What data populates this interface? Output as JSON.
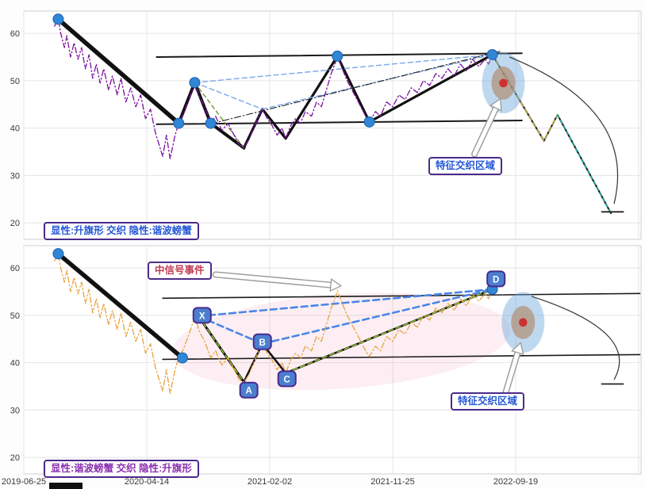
{
  "axes": {
    "x_tick_labels": [
      "2019-06-25",
      "2020-04-14",
      "2021-02-02",
      "2021-11-25",
      "2022-09-19"
    ],
    "y_tick_labels": [
      20,
      30,
      40,
      50,
      60
    ]
  },
  "price_history": {
    "points": [
      [
        0.25,
        61.5
      ],
      [
        0.28,
        63.2
      ],
      [
        0.3,
        60.0
      ],
      [
        0.33,
        57.0
      ],
      [
        0.35,
        59.5
      ],
      [
        0.38,
        55.0
      ],
      [
        0.41,
        58.0
      ],
      [
        0.44,
        54.5
      ],
      [
        0.47,
        57.0
      ],
      [
        0.5,
        52.5
      ],
      [
        0.53,
        55.5
      ],
      [
        0.56,
        50.5
      ],
      [
        0.59,
        53.5
      ],
      [
        0.62,
        49.5
      ],
      [
        0.65,
        52.5
      ],
      [
        0.69,
        48.0
      ],
      [
        0.72,
        51.0
      ],
      [
        0.76,
        47.0
      ],
      [
        0.79,
        50.5
      ],
      [
        0.83,
        45.5
      ],
      [
        0.87,
        48.5
      ],
      [
        0.91,
        44.5
      ],
      [
        0.95,
        47.0
      ],
      [
        0.99,
        42.0
      ],
      [
        1.03,
        44.0
      ],
      [
        1.07,
        39.0
      ],
      [
        1.1,
        36.5
      ],
      [
        1.13,
        34.0
      ],
      [
        1.16,
        38.5
      ],
      [
        1.19,
        33.5
      ],
      [
        1.23,
        38.5
      ],
      [
        1.26,
        41.0
      ],
      [
        1.3,
        43.0
      ],
      [
        1.35,
        46.5
      ],
      [
        1.39,
        49.6
      ],
      [
        1.43,
        46.5
      ],
      [
        1.47,
        44.5
      ],
      [
        1.52,
        41.0
      ],
      [
        1.56,
        42.5
      ],
      [
        1.61,
        39.5
      ],
      [
        1.66,
        41.0
      ],
      [
        1.71,
        38.5
      ],
      [
        1.75,
        36.5
      ],
      [
        1.79,
        35.8
      ],
      [
        1.83,
        37.5
      ],
      [
        1.87,
        40.0
      ],
      [
        1.91,
        42.5
      ],
      [
        1.94,
        44.0
      ],
      [
        1.98,
        42.0
      ],
      [
        2.02,
        40.5
      ],
      [
        2.06,
        38.5
      ],
      [
        2.1,
        40.0
      ],
      [
        2.13,
        37.8
      ],
      [
        2.17,
        40.5
      ],
      [
        2.21,
        42.0
      ],
      [
        2.25,
        41.0
      ],
      [
        2.29,
        43.5
      ],
      [
        2.34,
        42.5
      ],
      [
        2.38,
        45.5
      ],
      [
        2.42,
        44.5
      ],
      [
        2.46,
        48.0
      ],
      [
        2.5,
        51.5
      ],
      [
        2.53,
        53.5
      ],
      [
        2.55,
        55.2
      ],
      [
        2.59,
        52.5
      ],
      [
        2.63,
        50.0
      ],
      [
        2.67,
        48.0
      ],
      [
        2.71,
        46.0
      ],
      [
        2.75,
        44.0
      ],
      [
        2.78,
        42.5
      ],
      [
        2.81,
        41.3
      ],
      [
        2.86,
        43.5
      ],
      [
        2.9,
        42.5
      ],
      [
        2.95,
        45.5
      ],
      [
        3.0,
        44.5
      ],
      [
        3.05,
        47.0
      ],
      [
        3.1,
        46.0
      ],
      [
        3.15,
        48.5
      ],
      [
        3.2,
        47.5
      ],
      [
        3.25,
        50.0
      ],
      [
        3.3,
        49.0
      ],
      [
        3.35,
        51.5
      ],
      [
        3.4,
        50.5
      ],
      [
        3.45,
        52.5
      ],
      [
        3.5,
        51.0
      ],
      [
        3.55,
        53.5
      ],
      [
        3.6,
        52.0
      ],
      [
        3.65,
        54.5
      ],
      [
        3.7,
        53.0
      ],
      [
        3.75,
        54.5
      ],
      [
        3.78,
        53.5
      ],
      [
        3.81,
        55.5
      ]
    ]
  },
  "chart_data": [
    {
      "type": "line",
      "name": "upper-panel-rising-flag",
      "xlim": [
        0,
        5.018
      ],
      "ylim": [
        16.5,
        64.7
      ],
      "grid": true,
      "x_ticks_u": [
        0,
        1,
        2,
        3,
        4,
        5
      ],
      "y_ticks": [
        20,
        30,
        40,
        50,
        60
      ],
      "corner_label": {
        "text": "显性:升旗形 交织 隐性:谐波螃蟹",
        "color": "#2457d6"
      },
      "price": {
        "name": "price-line-purple",
        "color": "#7b0fa0",
        "width": 1.3,
        "dash": "7,3,1.5,3"
      },
      "lines": [
        {
          "name": "channel-upper",
          "color": "#1a1a1a",
          "width": 2,
          "points": [
            [
              1.08,
              55.0
            ],
            [
              4.05,
              55.8
            ]
          ]
        },
        {
          "name": "channel-lower",
          "color": "#1a1a1a",
          "width": 2,
          "points": [
            [
              1.08,
              40.8
            ],
            [
              4.05,
              41.6
            ]
          ]
        },
        {
          "name": "flagpole",
          "color": "#111111",
          "width": 5.5,
          "points": [
            [
              0.28,
              63.0
            ],
            [
              1.26,
              41.0
            ]
          ]
        },
        {
          "name": "flag-zigzag-1",
          "color": "#111111",
          "width": 4,
          "points": [
            [
              1.26,
              41.0
            ],
            [
              1.39,
              49.6
            ],
            [
              1.52,
              41.0
            ],
            [
              1.79,
              35.8
            ]
          ]
        },
        {
          "name": "flag-zigzag-2",
          "color": "#111111",
          "width": 3.2,
          "points": [
            [
              1.79,
              35.8
            ],
            [
              1.94,
              44.0
            ],
            [
              2.13,
              37.8
            ],
            [
              2.55,
              55.2
            ],
            [
              2.81,
              41.3
            ],
            [
              3.81,
              55.5
            ]
          ]
        },
        {
          "name": "hidden-harmonic-xb",
          "color": "#7aa7e8",
          "width": 1.4,
          "dash": "6,4",
          "points": [
            [
              1.39,
              49.6
            ],
            [
              1.94,
              44.0
            ]
          ]
        },
        {
          "name": "hidden-harmonic-bd",
          "color": "#7aa7e8",
          "width": 1.4,
          "dash": "6,4",
          "points": [
            [
              1.94,
              44.0
            ],
            [
              3.81,
              55.5
            ]
          ]
        },
        {
          "name": "hidden-harmonic-xd",
          "color": "#7aa7e8",
          "width": 1.4,
          "dash": "6,4",
          "points": [
            [
              1.39,
              49.6
            ],
            [
              3.81,
              55.5
            ]
          ]
        },
        {
          "name": "hidden-harmonic-xa-green",
          "color": "#6b8e23",
          "width": 1.3,
          "dash": "5,4",
          "points": [
            [
              1.39,
              49.6
            ],
            [
              1.79,
              35.8
            ]
          ]
        },
        {
          "name": "measure-dashdot-ad",
          "color": "#222222",
          "width": 1.1,
          "dash": "8,3,1.5,3",
          "points": [
            [
              1.52,
              40.9
            ],
            [
              3.87,
              56.2
            ]
          ]
        },
        {
          "name": "forecast-path",
          "color": "#111111",
          "width": 2,
          "points": [
            [
              3.81,
              55.5
            ],
            [
              4.23,
              37.3
            ],
            [
              4.34,
              42.8
            ],
            [
              4.775,
              22.0
            ]
          ]
        },
        {
          "name": "forecast-khaki-dash",
          "color": "#b5a642",
          "width": 1.7,
          "dash": "6,4",
          "points": [
            [
              3.81,
              55.5
            ],
            [
              4.23,
              37.3
            ],
            [
              4.34,
              42.8
            ]
          ]
        },
        {
          "name": "forecast-teal-dash",
          "color": "#1fa8a0",
          "width": 1.7,
          "dash": "4,4",
          "points": [
            [
              4.34,
              42.8
            ],
            [
              4.775,
              22.0
            ]
          ]
        },
        {
          "name": "target-end-bar",
          "color": "#222222",
          "width": 1.8,
          "points": [
            [
              4.7,
              22.3
            ],
            [
              4.875,
              22.3
            ]
          ]
        }
      ],
      "markers": {
        "color": "#2f87d5",
        "stroke": "#1f5fa8",
        "r": 6.5,
        "points": [
          [
            0.28,
            63.0
          ],
          [
            1.26,
            41.0
          ],
          [
            1.39,
            49.6
          ],
          [
            1.52,
            41.0
          ],
          [
            2.55,
            55.2
          ],
          [
            2.81,
            41.3
          ],
          [
            3.81,
            55.5
          ]
        ]
      },
      "zone": {
        "x": 3.9,
        "y": 49.5,
        "label": "特征交织区域",
        "rings": [
          {
            "rx": 0.174,
            "ry": 6.4,
            "color": "#6fa8dc",
            "opacity": 0.45
          },
          {
            "rx": 0.097,
            "ry": 3.5,
            "color": "#b08968",
            "opacity": 0.65
          },
          {
            "rx": 0.034,
            "ry": 0.9,
            "color": "#cf2b2b",
            "opacity": 0.95
          }
        ]
      },
      "white_arrows": [
        {
          "from": [
            3.665,
            34.5
          ],
          "to": [
            3.875,
            46.2
          ]
        }
      ],
      "curved_arrow": {
        "p0": [
          3.95,
          55.0
        ],
        "c": [
          4.99,
          44.0
        ],
        "p1": [
          4.8,
          24.0
        ]
      }
    },
    {
      "type": "line",
      "name": "lower-panel-harmonic-crab",
      "xlim": [
        0,
        5.018
      ],
      "ylim": [
        16.5,
        64.7
      ],
      "grid": true,
      "x_ticks_u": [
        0,
        1,
        2,
        3,
        4,
        5
      ],
      "y_ticks": [
        20,
        30,
        40,
        50,
        60
      ],
      "corner_label": {
        "text": "显性:谐波螃蟹 交织 隐性:升旗形",
        "color": "#8b2fb0"
      },
      "signal_label": {
        "text": "中信号事件",
        "color": "#c03a52"
      },
      "price": {
        "name": "price-line-orange",
        "color": "#e8a33d",
        "width": 1.3,
        "dash": "7,3,1.5,3"
      },
      "lines": [
        {
          "name": "channel-upper",
          "color": "#1a1a1a",
          "width": 1.6,
          "points": [
            [
              1.13,
              53.6
            ],
            [
              5.01,
              54.6
            ]
          ]
        },
        {
          "name": "channel-lower",
          "color": "#1a1a1a",
          "width": 1.6,
          "points": [
            [
              1.13,
              40.7
            ],
            [
              5.01,
              41.7
            ]
          ]
        },
        {
          "name": "flagpole",
          "color": "#111111",
          "width": 5.5,
          "points": [
            [
              0.28,
              63.0
            ],
            [
              1.29,
              41.0
            ]
          ]
        },
        {
          "name": "leg-xa-black",
          "color": "#111111",
          "width": 3,
          "points": [
            [
              1.42,
              49.8
            ],
            [
              1.79,
              35.9
            ]
          ]
        },
        {
          "name": "leg-ab-bc-black",
          "color": "#111111",
          "width": 2.5,
          "points": [
            [
              1.79,
              35.9
            ],
            [
              1.94,
              44.0
            ],
            [
              2.13,
              37.8
            ]
          ]
        },
        {
          "name": "leg-cd-black",
          "color": "#111111",
          "width": 2.5,
          "points": [
            [
              2.13,
              37.8
            ],
            [
              3.81,
              55.5
            ]
          ]
        },
        {
          "name": "leg-xa-green-dash",
          "color": "#9acd32",
          "width": 1.4,
          "dash": "6,4",
          "points": [
            [
              1.42,
              49.8
            ],
            [
              1.79,
              35.9
            ]
          ]
        },
        {
          "name": "leg-cd-green-dash",
          "color": "#9acd32",
          "width": 1.4,
          "dash": "6,4",
          "points": [
            [
              2.13,
              37.8
            ],
            [
              3.81,
              55.5
            ]
          ]
        },
        {
          "name": "harmonic-xb-dashed",
          "color": "#4a86e8",
          "width": 2.6,
          "dash": "8,5",
          "points": [
            [
              1.42,
              49.8
            ],
            [
              1.94,
              44.0
            ]
          ]
        },
        {
          "name": "harmonic-bd-dashed",
          "color": "#4a86e8",
          "width": 2.6,
          "dash": "8,5",
          "points": [
            [
              1.94,
              44.0
            ],
            [
              3.81,
              55.5
            ]
          ]
        },
        {
          "name": "harmonic-xd-dashed",
          "color": "#4a86e8",
          "width": 2.6,
          "dash": "8,5",
          "points": [
            [
              1.42,
              49.8
            ],
            [
              3.81,
              55.5
            ]
          ]
        },
        {
          "name": "target-end-bar",
          "color": "#222222",
          "width": 1.8,
          "points": [
            [
              4.7,
              35.5
            ],
            [
              4.875,
              35.5
            ]
          ]
        }
      ],
      "markers": {
        "color": "#2f87d5",
        "stroke": "#1f5fa8",
        "r": 6.5,
        "points": [
          [
            0.28,
            63.0
          ],
          [
            1.29,
            41.0
          ],
          [
            3.81,
            55.5
          ]
        ]
      },
      "badges": [
        {
          "label": "X",
          "x": 1.45,
          "y": 50.0
        },
        {
          "label": "A",
          "x": 1.83,
          "y": 34.2
        },
        {
          "label": "B",
          "x": 1.94,
          "y": 44.4
        },
        {
          "label": "C",
          "x": 2.14,
          "y": 36.6
        },
        {
          "label": "D",
          "x": 3.84,
          "y": 57.7
        }
      ],
      "region_ellipse": {
        "cx": 2.58,
        "cy": 44.5,
        "rx": 1.38,
        "ry": 10.0,
        "rot": -4,
        "color": "#f0a3b8",
        "opacity": 0.18
      },
      "zone": {
        "x": 4.06,
        "y": 48.5,
        "label": "特征交织区域",
        "rings": [
          {
            "rx": 0.174,
            "ry": 6.4,
            "color": "#6fa8dc",
            "opacity": 0.45
          },
          {
            "rx": 0.097,
            "ry": 3.5,
            "color": "#b08968",
            "opacity": 0.65
          },
          {
            "rx": 0.034,
            "ry": 0.9,
            "color": "#cf2b2b",
            "opacity": 0.95
          }
        ]
      },
      "white_arrows": [
        {
          "from": [
            3.92,
            33.8
          ],
          "to": [
            4.04,
            44.2
          ]
        },
        {
          "from": [
            1.56,
            58.6
          ],
          "to": [
            2.58,
            56.2
          ]
        }
      ],
      "curved_arrow": {
        "p0": [
          4.13,
          54.0
        ],
        "c": [
          5.02,
          46.5
        ],
        "p1": [
          4.8,
          36.4
        ]
      }
    }
  ]
}
